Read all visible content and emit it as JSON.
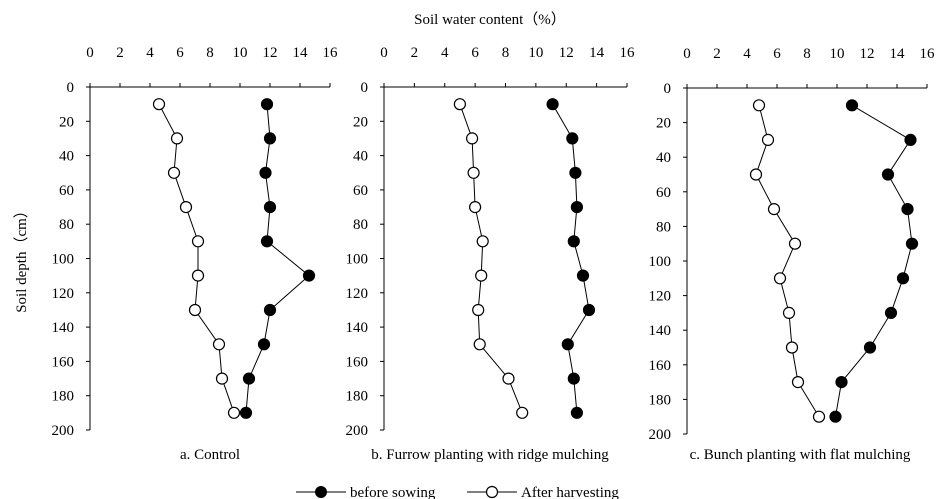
{
  "figure": {
    "shared_xlabel": "Soil water content（%）",
    "shared_ylabel": "Soil depth（cm）",
    "legend": [
      {
        "name": "before sowing",
        "marker": "filled-circle"
      },
      {
        "name": "After harvesting",
        "marker": "open-circle"
      }
    ]
  },
  "chart_data": [
    {
      "type": "line",
      "caption": "a. Control",
      "xlabel": "Soil water content（%）",
      "ylabel": "Soil depth（cm）",
      "xlim": [
        0,
        16
      ],
      "ylim": [
        0,
        200
      ],
      "y_inverted": true,
      "x_ticks": [
        "0",
        "2",
        "4",
        "6",
        "8",
        "10",
        "12",
        "14",
        "16"
      ],
      "y_ticks": [
        "0",
        "20",
        "40",
        "60",
        "80",
        "100",
        "120",
        "140",
        "160",
        "180",
        "200"
      ],
      "depths": [
        10,
        30,
        50,
        70,
        90,
        110,
        130,
        150,
        170,
        190
      ],
      "series": [
        {
          "name": "before sowing",
          "values": [
            11.8,
            12.0,
            11.7,
            12.0,
            11.8,
            14.6,
            12.0,
            11.6,
            10.6,
            10.4
          ]
        },
        {
          "name": "After harvesting",
          "values": [
            4.6,
            5.8,
            5.6,
            6.4,
            7.2,
            7.2,
            7.0,
            8.6,
            8.8,
            9.6
          ]
        }
      ]
    },
    {
      "type": "line",
      "caption": "b. Furrow planting with ridge mulching",
      "xlabel": "Soil water content（%）",
      "ylabel": "Soil depth（cm）",
      "xlim": [
        0,
        16
      ],
      "ylim": [
        0,
        200
      ],
      "y_inverted": true,
      "x_ticks": [
        "0",
        "2",
        "4",
        "6",
        "8",
        "10",
        "12",
        "14",
        "16"
      ],
      "y_ticks": [
        "0",
        "20",
        "40",
        "60",
        "80",
        "100",
        "120",
        "140",
        "160",
        "180",
        "200"
      ],
      "depths": [
        10,
        30,
        50,
        70,
        90,
        110,
        130,
        150,
        170,
        190
      ],
      "series": [
        {
          "name": "before sowing",
          "values": [
            11.1,
            12.4,
            12.6,
            12.7,
            12.5,
            13.1,
            13.5,
            12.1,
            12.5,
            12.7
          ]
        },
        {
          "name": "After harvesting",
          "values": [
            5.0,
            5.8,
            5.9,
            6.0,
            6.5,
            6.4,
            6.2,
            6.3,
            8.2,
            9.1
          ]
        }
      ]
    },
    {
      "type": "line",
      "caption": "c. Bunch planting with flat mulching",
      "xlabel": "Soil water content（%）",
      "ylabel": "Soil depth（cm）",
      "xlim": [
        0,
        16
      ],
      "ylim": [
        0,
        200
      ],
      "y_inverted": true,
      "x_ticks": [
        "0",
        "2",
        "4",
        "6",
        "8",
        "10",
        "12",
        "14",
        "16"
      ],
      "y_ticks": [
        "0",
        "20",
        "40",
        "60",
        "80",
        "100",
        "120",
        "140",
        "160",
        "180",
        "200"
      ],
      "depths": [
        10,
        30,
        50,
        70,
        90,
        110,
        130,
        150,
        170,
        190
      ],
      "series": [
        {
          "name": "before sowing",
          "values": [
            11.0,
            14.9,
            13.4,
            14.7,
            15.0,
            14.4,
            13.6,
            12.2,
            10.3,
            9.9
          ]
        },
        {
          "name": "After harvesting",
          "values": [
            4.8,
            5.4,
            4.6,
            5.8,
            7.2,
            6.2,
            6.8,
            7.0,
            7.4,
            8.8
          ]
        }
      ]
    }
  ]
}
